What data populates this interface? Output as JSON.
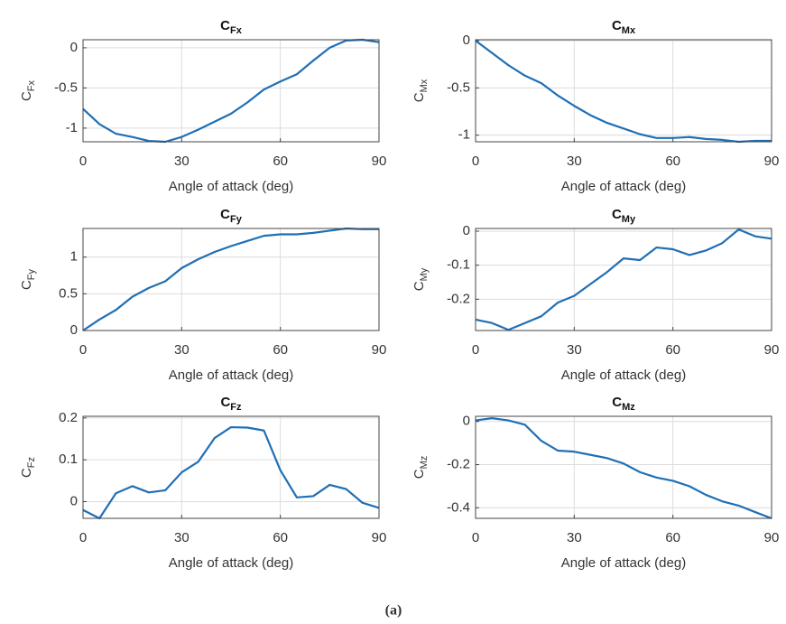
{
  "chart_data": [
    {
      "type": "line",
      "title": [
        "C",
        "Fx"
      ],
      "ylabel": [
        "C",
        "Fx"
      ],
      "xlabel": "Angle of attack (deg)",
      "x": [
        0,
        5,
        10,
        15,
        20,
        25,
        30,
        35,
        40,
        45,
        50,
        55,
        60,
        65,
        70,
        75,
        80,
        85,
        90
      ],
      "series": [
        {
          "color": "#1f6fb5",
          "values": [
            -0.76,
            -0.95,
            -1.07,
            -1.11,
            -1.16,
            -1.17,
            -1.11,
            -1.02,
            -0.92,
            -0.82,
            -0.68,
            -0.52,
            -0.42,
            -0.33,
            -0.16,
            0,
            0.09,
            0.1,
            0.07
          ]
        }
      ],
      "xlim": [
        0,
        90
      ],
      "xticks": [
        0,
        30,
        60,
        90
      ],
      "ylim": [
        -1.17,
        0.1
      ],
      "yticks": [
        -1,
        -0.5,
        0
      ],
      "grid": true
    },
    {
      "type": "line",
      "title": [
        "C",
        "Mx"
      ],
      "ylabel": [
        "C",
        "Mx"
      ],
      "xlabel": "Angle of attack (deg)",
      "x": [
        0,
        5,
        10,
        15,
        20,
        25,
        30,
        35,
        40,
        45,
        50,
        55,
        60,
        65,
        70,
        75,
        80,
        85,
        90
      ],
      "series": [
        {
          "color": "#1f6fb5",
          "values": [
            0,
            -0.13,
            -0.26,
            -0.37,
            -0.45,
            -0.58,
            -0.69,
            -0.79,
            -0.87,
            -0.93,
            -0.99,
            -1.03,
            -1.03,
            -1.02,
            -1.04,
            -1.05,
            -1.07,
            -1.06,
            -1.06
          ]
        }
      ],
      "xlim": [
        0,
        90
      ],
      "xticks": [
        0,
        30,
        60,
        90
      ],
      "ylim": [
        -1.07,
        0.01
      ],
      "yticks": [
        -1,
        -0.5,
        0
      ],
      "grid": true
    },
    {
      "type": "line",
      "title": [
        "C",
        "Fy"
      ],
      "ylabel": [
        "C",
        "Fy"
      ],
      "xlabel": "Angle of attack (deg)",
      "x": [
        0,
        5,
        10,
        15,
        20,
        25,
        30,
        35,
        40,
        45,
        50,
        55,
        60,
        65,
        70,
        75,
        80,
        85,
        90
      ],
      "series": [
        {
          "color": "#1f6fb5",
          "values": [
            0,
            0.15,
            0.28,
            0.46,
            0.58,
            0.67,
            0.85,
            0.97,
            1.07,
            1.15,
            1.22,
            1.29,
            1.31,
            1.31,
            1.33,
            1.36,
            1.39,
            1.38,
            1.38
          ]
        }
      ],
      "xlim": [
        0,
        90
      ],
      "xticks": [
        0,
        30,
        60,
        90
      ],
      "ylim": [
        0,
        1.39
      ],
      "yticks": [
        0,
        0.5,
        1
      ],
      "grid": true
    },
    {
      "type": "line",
      "title": [
        "C",
        "My"
      ],
      "ylabel": [
        "C",
        "My"
      ],
      "xlabel": "Angle of attack (deg)",
      "x": [
        0,
        5,
        10,
        15,
        20,
        25,
        30,
        35,
        40,
        45,
        50,
        55,
        60,
        65,
        70,
        75,
        80,
        85,
        90
      ],
      "series": [
        {
          "color": "#1f6fb5",
          "values": [
            -0.26,
            -0.27,
            -0.29,
            -0.27,
            -0.25,
            -0.21,
            -0.19,
            -0.155,
            -0.12,
            -0.08,
            -0.085,
            -0.048,
            -0.053,
            -0.07,
            -0.057,
            -0.035,
            0.005,
            -0.015,
            -0.022
          ]
        }
      ],
      "xlim": [
        0,
        90
      ],
      "xticks": [
        0,
        30,
        60,
        90
      ],
      "ylim": [
        -0.292,
        0.008
      ],
      "yticks": [
        -0.2,
        -0.1,
        0
      ],
      "grid": true
    },
    {
      "type": "line",
      "title": [
        "C",
        "Fz"
      ],
      "ylabel": [
        "C",
        "Fz"
      ],
      "xlabel": "Angle of attack (deg)",
      "x": [
        0,
        5,
        10,
        15,
        20,
        25,
        30,
        35,
        40,
        45,
        50,
        55,
        60,
        65,
        70,
        75,
        80,
        85,
        90
      ],
      "series": [
        {
          "color": "#1f6fb5",
          "values": [
            -0.02,
            -0.04,
            0.02,
            0.037,
            0.022,
            0.027,
            0.07,
            0.095,
            0.152,
            0.178,
            0.177,
            0.17,
            0.075,
            0.01,
            0.013,
            0.04,
            0.03,
            -0.003,
            -0.015
          ]
        }
      ],
      "xlim": [
        0,
        90
      ],
      "xticks": [
        0,
        30,
        60,
        90
      ],
      "ylim": [
        -0.04,
        0.204
      ],
      "yticks": [
        0,
        0.1,
        0.2
      ],
      "grid": true
    },
    {
      "type": "line",
      "title": [
        "C",
        "Mz"
      ],
      "ylabel": [
        "C",
        "Mz"
      ],
      "xlabel": "Angle of attack (deg)",
      "x": [
        0,
        5,
        10,
        15,
        20,
        25,
        30,
        35,
        40,
        45,
        50,
        55,
        60,
        65,
        70,
        75,
        80,
        85,
        90
      ],
      "series": [
        {
          "color": "#1f6fb5",
          "values": [
            0.005,
            0.015,
            0.005,
            -0.015,
            -0.09,
            -0.135,
            -0.14,
            -0.155,
            -0.17,
            -0.195,
            -0.235,
            -0.26,
            -0.275,
            -0.3,
            -0.34,
            -0.37,
            -0.39,
            -0.42,
            -0.449
          ]
        }
      ],
      "xlim": [
        0,
        90
      ],
      "xticks": [
        0,
        30,
        60,
        90
      ],
      "ylim": [
        -0.449,
        0.024
      ],
      "yticks": [
        -0.4,
        -0.2,
        0
      ],
      "grid": true
    }
  ],
  "caption": "(a)"
}
